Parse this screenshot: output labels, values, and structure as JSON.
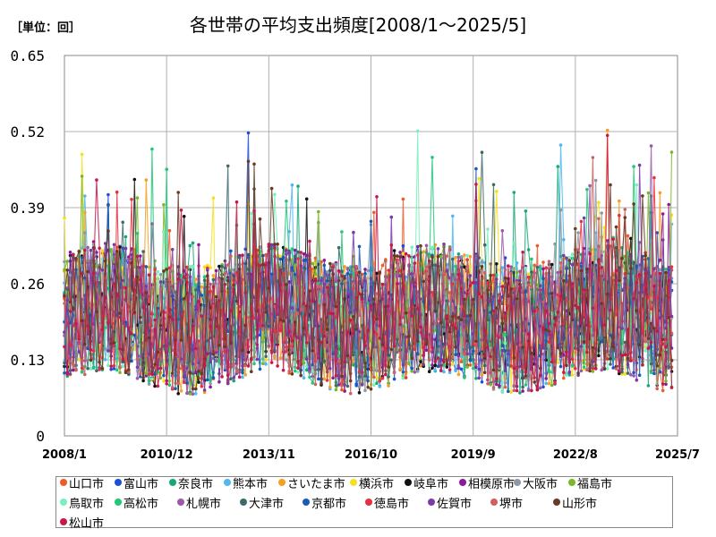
{
  "unit_label": "［単位：回］",
  "chart_data": {
    "type": "line",
    "title": "各世帯の平均支出頻度[2008/1～2025/5]",
    "xlabel": "",
    "ylabel": "",
    "ylim": [
      0,
      0.65
    ],
    "yticks": [
      "0",
      "0.13",
      "0.26",
      "0.39",
      "0.52",
      "0.65"
    ],
    "ytick_values": [
      0,
      0.13,
      0.26,
      0.39,
      0.52,
      0.65
    ],
    "x_start": "2008/1",
    "x_end": "2025/7",
    "xticks": [
      "2008/1",
      "2010/12",
      "2013/11",
      "2016/10",
      "2019/9",
      "2022/8",
      "2025/7"
    ],
    "grid": true,
    "legend_position": "bottom",
    "series": [
      {
        "name": "山口市",
        "color": "#f05a28"
      },
      {
        "name": "富山市",
        "color": "#1f4fd8"
      },
      {
        "name": "奈良市",
        "color": "#18a878"
      },
      {
        "name": "熊本市",
        "color": "#4fb8f0"
      },
      {
        "name": "さいたま市",
        "color": "#f5a020"
      },
      {
        "name": "横浜市",
        "color": "#f5e020"
      },
      {
        "name": "岐阜市",
        "color": "#111111"
      },
      {
        "name": "相模原市",
        "color": "#8a1a9a"
      },
      {
        "name": "大阪市",
        "color": "#8a9aa8"
      },
      {
        "name": "福島市",
        "color": "#7ab828"
      },
      {
        "name": "鳥取市",
        "color": "#7af0c0"
      },
      {
        "name": "高松市",
        "color": "#20c878"
      },
      {
        "name": "札幌市",
        "color": "#9a5aa8"
      },
      {
        "name": "大津市",
        "color": "#406a6a"
      },
      {
        "name": "京都市",
        "color": "#1a5ab8"
      },
      {
        "name": "徳島市",
        "color": "#e83040"
      },
      {
        "name": "佐賀市",
        "color": "#7a3aa8"
      },
      {
        "name": "堺市",
        "color": "#d06060"
      },
      {
        "name": "山形市",
        "color": "#6a3a20"
      },
      {
        "name": "松山市",
        "color": "#c81848"
      }
    ]
  }
}
